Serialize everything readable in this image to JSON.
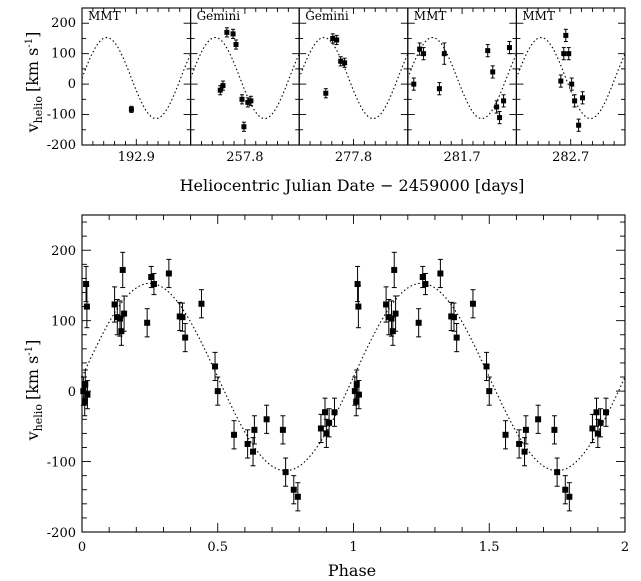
{
  "chart_data": [
    {
      "type": "scatter",
      "ylabel": "v_helio [km s^-1]",
      "ylabel_main": "v",
      "ylabel_sub": "helio",
      "ylabel_unit": "[km s",
      "ylabel_unit_sup": "-1",
      "ylabel_unit_end": "]",
      "xlabel": "Heliocentric Julian Date − 2459000 [days]",
      "ylim": [
        -200,
        250
      ],
      "yticks": [
        -200,
        -100,
        0,
        100,
        200
      ],
      "period_days": 0.0909,
      "model": {
        "gamma": 20,
        "amplitude": 133,
        "phase_offset": 0.0
      },
      "panels": [
        {
          "telescope": "MMT",
          "x_center_label": "192.9",
          "points": [
            {
              "t": 0.0455,
              "v": -83,
              "err": 10
            }
          ]
        },
        {
          "telescope": "Gemini",
          "x_center_label": "257.8",
          "points": [
            {
              "t": 0.0273,
              "v": -20,
              "err": 15
            },
            {
              "t": 0.0298,
              "v": -5,
              "err": 15
            },
            {
              "t": 0.0334,
              "v": 170,
              "err": 15
            },
            {
              "t": 0.0391,
              "v": 165,
              "err": 15
            },
            {
              "t": 0.0418,
              "v": 130,
              "err": 15
            },
            {
              "t": 0.0473,
              "v": -50,
              "err": 15
            },
            {
              "t": 0.0491,
              "v": -140,
              "err": 15
            },
            {
              "t": 0.0527,
              "v": -60,
              "err": 15
            },
            {
              "t": 0.0555,
              "v": -55,
              "err": 15
            }
          ]
        },
        {
          "telescope": "Gemini",
          "x_center_label": "277.8",
          "points": [
            {
              "t": 0.0245,
              "v": -30,
              "err": 15
            },
            {
              "t": 0.0309,
              "v": 150,
              "err": 15
            },
            {
              "t": 0.0345,
              "v": 145,
              "err": 15
            },
            {
              "t": 0.0382,
              "v": 75,
              "err": 15
            },
            {
              "t": 0.0418,
              "v": 70,
              "err": 15
            }
          ]
        },
        {
          "telescope": "MMT",
          "x_center_label": "281.7",
          "points": [
            {
              "t": 0.0055,
              "v": 0,
              "err": 20
            },
            {
              "t": 0.0109,
              "v": 115,
              "err": 20
            },
            {
              "t": 0.0145,
              "v": 100,
              "err": 20
            },
            {
              "t": 0.0291,
              "v": -15,
              "err": 20
            },
            {
              "t": 0.0336,
              "v": 100,
              "err": 35
            },
            {
              "t": 0.0736,
              "v": 110,
              "err": 20
            },
            {
              "t": 0.0782,
              "v": 40,
              "err": 20
            },
            {
              "t": 0.0818,
              "v": -75,
              "err": 20
            },
            {
              "t": 0.0845,
              "v": -110,
              "err": 20
            },
            {
              "t": 0.0882,
              "v": -55,
              "err": 20
            },
            {
              "t": 0.0936,
              "v": 120,
              "err": 20
            }
          ]
        },
        {
          "telescope": "MMT",
          "x_center_label": "282.7",
          "points": [
            {
              "t": 0.0409,
              "v": 10,
              "err": 20
            },
            {
              "t": 0.0436,
              "v": 100,
              "err": 20
            },
            {
              "t": 0.0455,
              "v": 160,
              "err": 20
            },
            {
              "t": 0.0482,
              "v": 100,
              "err": 20
            },
            {
              "t": 0.0509,
              "v": 0,
              "err": 20
            },
            {
              "t": 0.0536,
              "v": -55,
              "err": 20
            },
            {
              "t": 0.0573,
              "v": -135,
              "err": 20
            },
            {
              "t": 0.0609,
              "v": -45,
              "err": 20
            }
          ]
        }
      ]
    },
    {
      "type": "scatter",
      "xlabel": "Phase",
      "ylabel": "v_helio [km s^-1]",
      "ylabel_main": "v",
      "ylabel_sub": "helio",
      "ylabel_unit": "[km s",
      "ylabel_unit_sup": "-1",
      "ylabel_unit_end": "]",
      "xlim": [
        0,
        2
      ],
      "ylim": [
        -200,
        250
      ],
      "xticks": [
        0,
        0.5,
        1,
        1.5,
        2
      ],
      "xtick_labels": [
        "0",
        "0.5",
        "1",
        "1.5",
        "2"
      ],
      "yticks": [
        -200,
        -100,
        0,
        100,
        200
      ],
      "model": {
        "gamma": 20,
        "amplitude": 133,
        "phase_offset": 0.0
      },
      "points": [
        {
          "phase": 0.005,
          "v": 0,
          "err": 20
        },
        {
          "phase": 0.01,
          "v": -15,
          "err": 20
        },
        {
          "phase": 0.012,
          "v": 10,
          "err": 20
        },
        {
          "phase": 0.015,
          "v": 152,
          "err": 25
        },
        {
          "phase": 0.018,
          "v": 120,
          "err": 30
        },
        {
          "phase": 0.02,
          "v": -5,
          "err": 20
        },
        {
          "phase": 0.12,
          "v": 123,
          "err": 25
        },
        {
          "phase": 0.13,
          "v": 105,
          "err": 25
        },
        {
          "phase": 0.14,
          "v": 103,
          "err": 25
        },
        {
          "phase": 0.145,
          "v": 85,
          "err": 20
        },
        {
          "phase": 0.15,
          "v": 172,
          "err": 25
        },
        {
          "phase": 0.155,
          "v": 110,
          "err": 25
        },
        {
          "phase": 0.24,
          "v": 97,
          "err": 20
        },
        {
          "phase": 0.255,
          "v": 162,
          "err": 15
        },
        {
          "phase": 0.265,
          "v": 152,
          "err": 15
        },
        {
          "phase": 0.32,
          "v": 167,
          "err": 20
        },
        {
          "phase": 0.36,
          "v": 106,
          "err": 20
        },
        {
          "phase": 0.37,
          "v": 105,
          "err": 20
        },
        {
          "phase": 0.38,
          "v": 76,
          "err": 20
        },
        {
          "phase": 0.44,
          "v": 124,
          "err": 20
        },
        {
          "phase": 0.49,
          "v": 35,
          "err": 20
        },
        {
          "phase": 0.5,
          "v": 0,
          "err": 20
        },
        {
          "phase": 0.56,
          "v": -62,
          "err": 20
        },
        {
          "phase": 0.61,
          "v": -75,
          "err": 20
        },
        {
          "phase": 0.63,
          "v": -86,
          "err": 20
        },
        {
          "phase": 0.635,
          "v": -55,
          "err": 20
        },
        {
          "phase": 0.68,
          "v": -40,
          "err": 20
        },
        {
          "phase": 0.74,
          "v": -55,
          "err": 20
        },
        {
          "phase": 0.75,
          "v": -115,
          "err": 20
        },
        {
          "phase": 0.78,
          "v": -140,
          "err": 20
        },
        {
          "phase": 0.795,
          "v": -150,
          "err": 20
        },
        {
          "phase": 0.88,
          "v": -53,
          "err": 20
        },
        {
          "phase": 0.895,
          "v": -30,
          "err": 20
        },
        {
          "phase": 0.9,
          "v": -60,
          "err": 20
        },
        {
          "phase": 0.91,
          "v": -45,
          "err": 20
        },
        {
          "phase": 0.93,
          "v": -30,
          "err": 20
        }
      ]
    }
  ]
}
